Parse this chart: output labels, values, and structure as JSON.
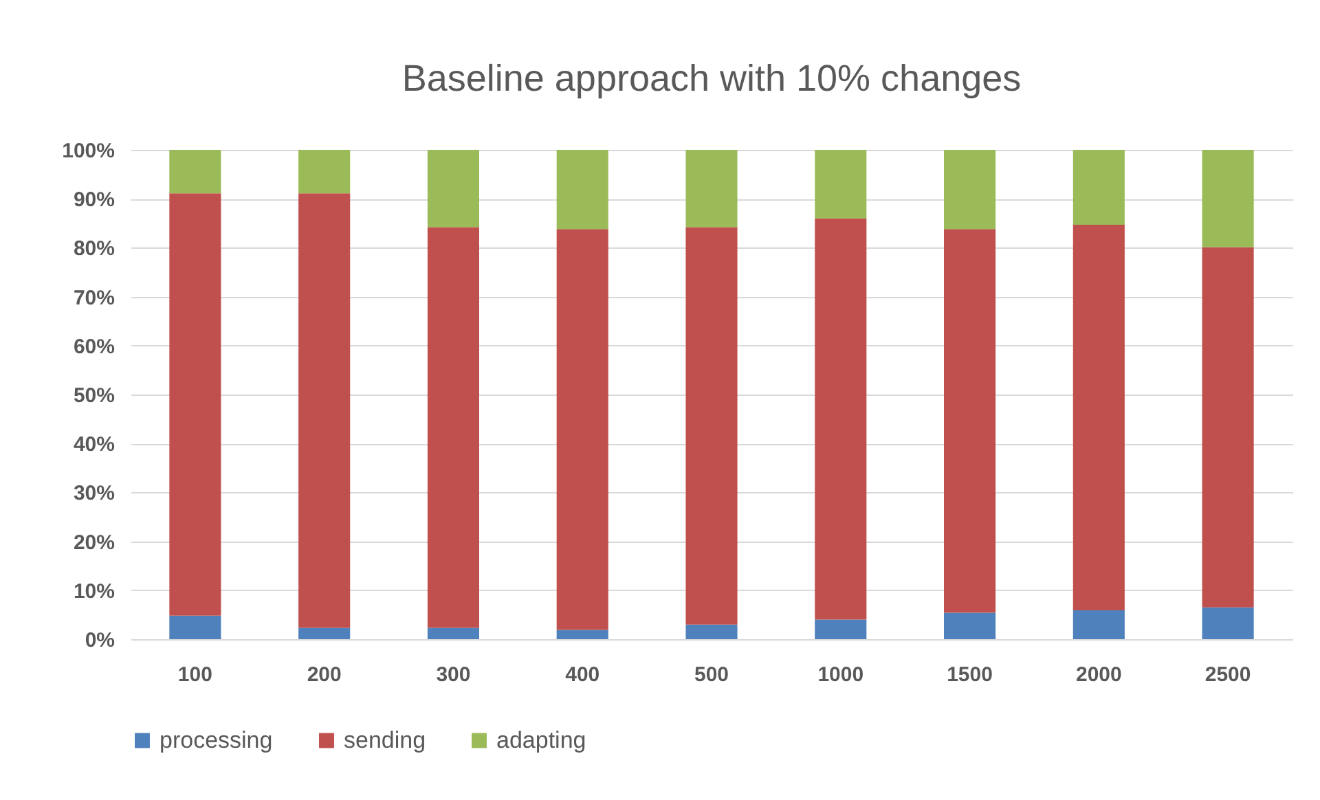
{
  "chart_data": {
    "type": "bar",
    "title": "Baseline approach with 10% changes",
    "categories": [
      "100",
      "200",
      "300",
      "400",
      "500",
      "1000",
      "1500",
      "2000",
      "2500"
    ],
    "stacked": true,
    "series": [
      {
        "name": "processing",
        "color": "#4f81bd",
        "values": [
          4.8,
          2.3,
          2.3,
          1.9,
          3.0,
          4.0,
          5.4,
          5.9,
          6.5
        ]
      },
      {
        "name": "sending",
        "color": "#c0504d",
        "values": [
          86.3,
          88.8,
          81.9,
          81.9,
          81.2,
          82.0,
          78.4,
          78.8,
          73.6
        ]
      },
      {
        "name": "adapting",
        "color": "#9bbb59",
        "values": [
          8.9,
          8.9,
          15.8,
          16.2,
          15.8,
          14.0,
          16.2,
          15.3,
          19.9
        ]
      }
    ],
    "ylim": [
      0,
      100
    ],
    "yticks": [
      {
        "value": 0,
        "label": "0%"
      },
      {
        "value": 10,
        "label": "10%"
      },
      {
        "value": 20,
        "label": "20%"
      },
      {
        "value": 30,
        "label": "30%"
      },
      {
        "value": 40,
        "label": "40%"
      },
      {
        "value": 50,
        "label": "50%"
      },
      {
        "value": 60,
        "label": "60%"
      },
      {
        "value": 70,
        "label": "70%"
      },
      {
        "value": 80,
        "label": "80%"
      },
      {
        "value": 90,
        "label": "90%"
      },
      {
        "value": 100,
        "label": "100%"
      }
    ],
    "grid": "y",
    "legend": "bottom"
  }
}
